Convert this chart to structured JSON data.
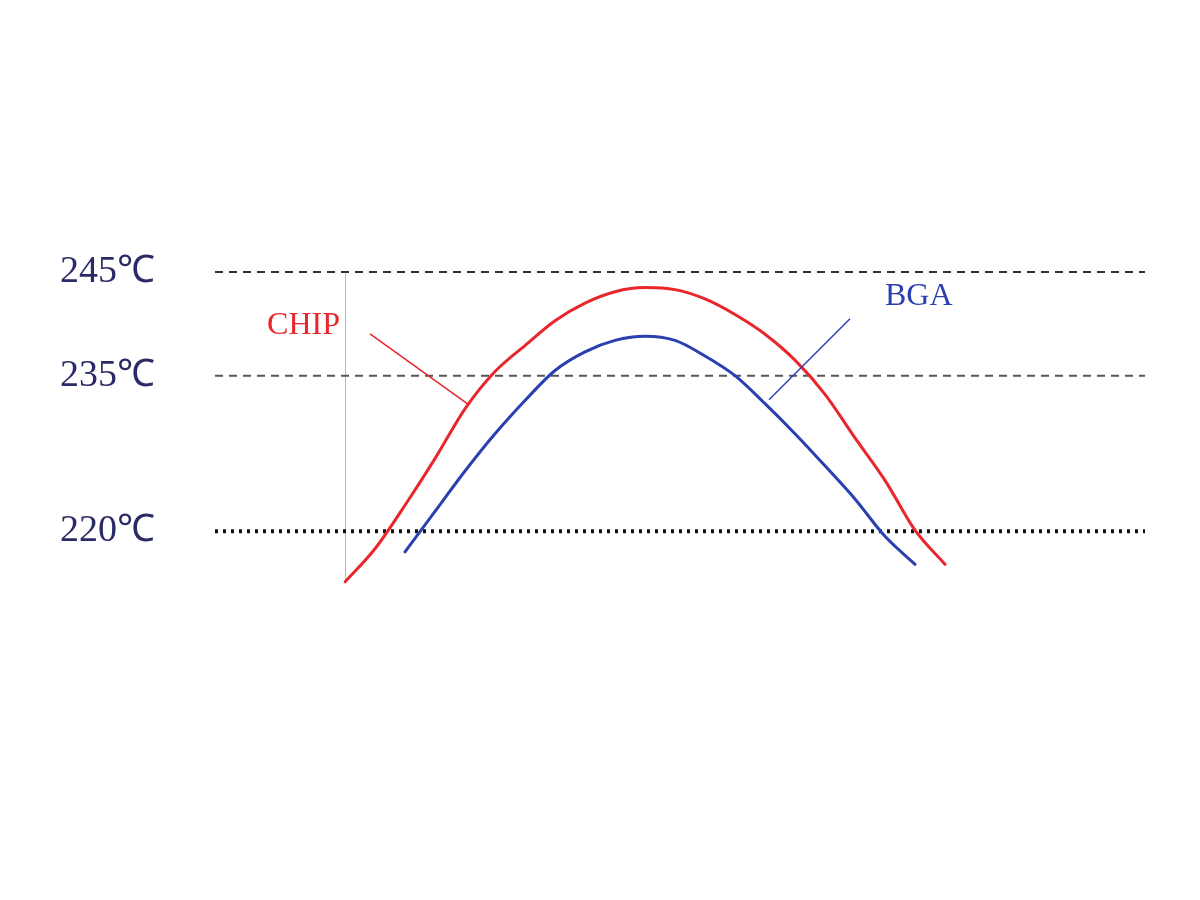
{
  "chart_data": {
    "type": "line",
    "categories": [
      null,
      null,
      null,
      null,
      null,
      null,
      null,
      null,
      null,
      null,
      null,
      null,
      null,
      null,
      null,
      null,
      null,
      null,
      null,
      null,
      null,
      null
    ],
    "series": [
      {
        "name": "CHIP",
        "color": "#e8262b",
        "values": [
          215.1,
          218.3,
          222.5,
          227.0,
          231.8,
          235.4,
          237.9,
          240.3,
          242.0,
          243.1,
          243.5,
          243.3,
          242.4,
          240.9,
          239.0,
          236.5,
          233.2,
          229.0,
          224.9,
          220.1,
          216.8,
          null
        ]
      },
      {
        "name": "BGA",
        "color": "#2a3fb0",
        "values": [
          null,
          null,
          218.0,
          221.9,
          225.8,
          229.4,
          232.6,
          235.5,
          237.3,
          238.4,
          238.8,
          238.4,
          236.9,
          235.0,
          232.3,
          229.4,
          226.3,
          223.1,
          219.5,
          216.8,
          null,
          null
        ]
      }
    ],
    "ylim": [
      215,
      245
    ],
    "yticks": [
      {
        "value": 220,
        "label": "220℃"
      },
      {
        "value": 235,
        "label": "235℃"
      },
      {
        "value": 245,
        "label": "245℃"
      }
    ],
    "ref_lines": [
      {
        "axis": "y",
        "value": 245,
        "line_style": "dashed",
        "color": "#333333"
      },
      {
        "axis": "y",
        "value": 235,
        "line_style": "dashed",
        "color": "#555555"
      },
      {
        "axis": "y",
        "value": 220,
        "line_style": "dotted",
        "color": "#111111"
      }
    ],
    "tick_labels": "y",
    "grid": false,
    "legend": false,
    "marker": "none",
    "line_style": "solid"
  }
}
